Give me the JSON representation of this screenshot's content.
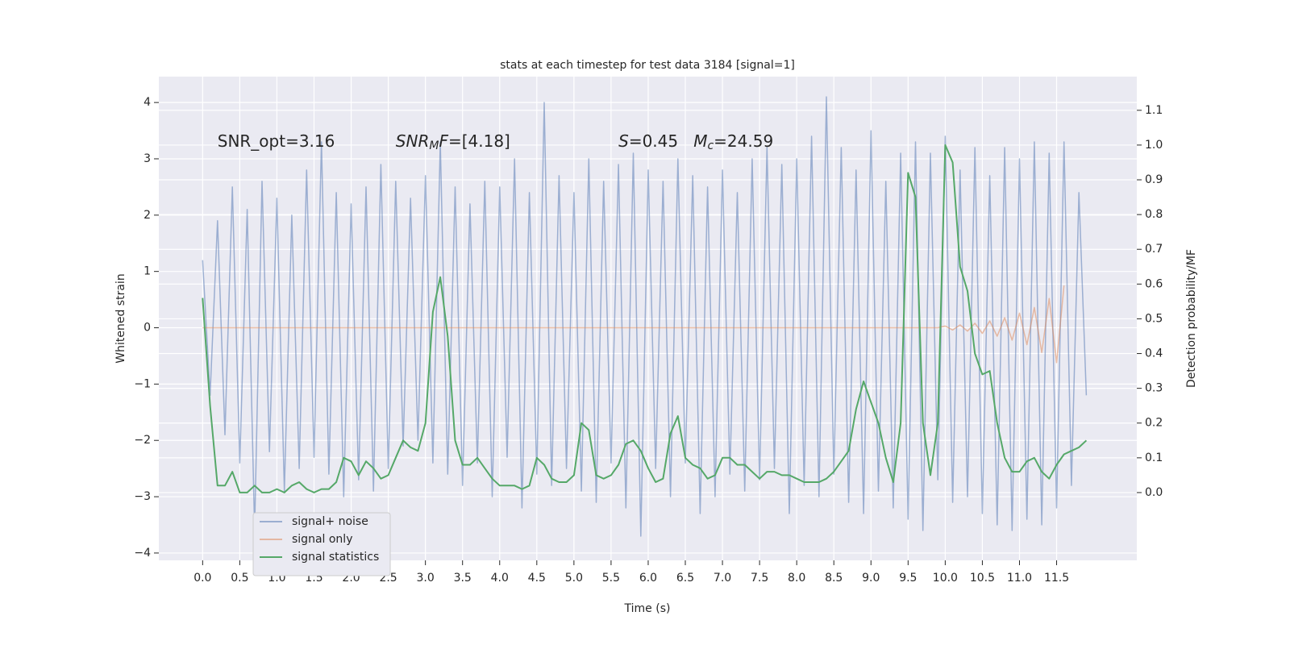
{
  "chart_data": {
    "type": "line",
    "title": "stats at each timestep for test data 3184 [signal=1]",
    "xlabel": "Time (s)",
    "ylabel": "Whitened strain",
    "y2label": "Detection probability/MF",
    "annotations": [
      {
        "x": 0.2,
        "y": 3.3,
        "parts": [
          {
            "text": "SNR_opt=3.16",
            "italic": false,
            "sub": false
          }
        ]
      },
      {
        "x": 2.6,
        "y": 3.3,
        "parts": [
          {
            "text": "SNR",
            "italic": true,
            "sub": false
          },
          {
            "text": "M",
            "italic": true,
            "sub": true
          },
          {
            "text": "F",
            "italic": true,
            "sub": false
          },
          {
            "text": "=[4.18]",
            "italic": false,
            "sub": false
          }
        ]
      },
      {
        "x": 5.6,
        "y": 3.3,
        "parts": [
          {
            "text": "S",
            "italic": true,
            "sub": false
          },
          {
            "text": "=0.45   ",
            "italic": false,
            "sub": false
          },
          {
            "text": "M",
            "italic": true,
            "sub": false
          },
          {
            "text": "c",
            "italic": true,
            "sub": true
          },
          {
            "text": "=24.59",
            "italic": false,
            "sub": false
          }
        ]
      }
    ],
    "x": [
      0.0,
      0.1,
      0.2,
      0.3,
      0.4,
      0.5,
      0.6,
      0.7,
      0.8,
      0.9,
      1.0,
      1.1,
      1.2,
      1.3,
      1.4,
      1.5,
      1.6,
      1.7,
      1.8,
      1.9,
      2.0,
      2.1,
      2.2,
      2.3,
      2.4,
      2.5,
      2.6,
      2.7,
      2.8,
      2.9,
      3.0,
      3.1,
      3.2,
      3.3,
      3.4,
      3.5,
      3.6,
      3.7,
      3.8,
      3.9,
      4.0,
      4.1,
      4.2,
      4.3,
      4.4,
      4.5,
      4.6,
      4.7,
      4.8,
      4.9,
      5.0,
      5.1,
      5.2,
      5.3,
      5.4,
      5.5,
      5.6,
      5.7,
      5.8,
      5.9,
      6.0,
      6.1,
      6.2,
      6.3,
      6.4,
      6.5,
      6.6,
      6.7,
      6.8,
      6.9,
      7.0,
      7.1,
      7.2,
      7.3,
      7.4,
      7.5,
      7.6,
      7.7,
      7.8,
      7.9,
      8.0,
      8.1,
      8.2,
      8.3,
      8.4,
      8.5,
      8.6,
      8.7,
      8.8,
      8.9,
      9.0,
      9.1,
      9.2,
      9.3,
      9.4,
      9.5,
      9.6,
      9.7,
      9.8,
      9.9,
      10.0,
      10.1,
      10.2,
      10.3,
      10.4,
      10.5,
      10.6,
      10.7,
      10.8,
      10.9,
      11.0,
      11.1,
      11.2,
      11.3,
      11.4,
      11.5,
      11.6,
      11.7,
      11.8,
      11.9
    ],
    "series": [
      {
        "name": "signal+ noise",
        "color": "#4c72b0",
        "opacity": 0.5,
        "axis": "y",
        "values": [
          1.2,
          -1.2,
          1.9,
          -1.9,
          2.5,
          -2.4,
          2.1,
          -3.6,
          2.6,
          -2.2,
          2.3,
          -2.9,
          2.0,
          -2.5,
          2.8,
          -2.3,
          3.3,
          -2.6,
          2.4,
          -3.0,
          2.2,
          -2.7,
          2.5,
          -2.9,
          2.9,
          -2.5,
          2.6,
          -2.1,
          2.3,
          -2.0,
          2.7,
          -2.4,
          3.3,
          -2.6,
          2.5,
          -2.8,
          2.2,
          -2.4,
          2.6,
          -3.0,
          2.5,
          -2.3,
          3.0,
          -3.2,
          2.4,
          -2.6,
          4.0,
          -2.8,
          2.7,
          -2.5,
          2.4,
          -2.9,
          3.0,
          -3.1,
          2.6,
          -2.4,
          2.9,
          -3.2,
          3.1,
          -3.7,
          2.8,
          -2.5,
          2.6,
          -3.0,
          3.0,
          -2.4,
          2.7,
          -3.3,
          2.5,
          -3.0,
          2.8,
          -2.6,
          2.4,
          -2.9,
          3.0,
          -2.7,
          3.2,
          -2.5,
          2.9,
          -3.3,
          3.0,
          -2.8,
          3.4,
          -3.0,
          4.1,
          -2.6,
          3.2,
          -3.1,
          2.8,
          -3.3,
          3.5,
          -2.9,
          2.6,
          -3.2,
          3.1,
          -3.4,
          3.3,
          -3.6,
          3.1,
          -2.7,
          3.4,
          -3.1,
          2.8,
          -3.0,
          3.2,
          -3.3,
          2.7,
          -3.5,
          3.2,
          -3.6,
          3.0,
          -3.4,
          3.3,
          -3.5,
          3.1,
          -3.2,
          3.3,
          -2.8,
          2.4,
          -1.2
        ]
      },
      {
        "name": "signal only",
        "color": "#dd8452",
        "opacity": 0.5,
        "axis": "y",
        "values": [
          0,
          0,
          0,
          0,
          0,
          0,
          0,
          0,
          0,
          0,
          0,
          0,
          0,
          0,
          0,
          0,
          0,
          0,
          0,
          0,
          0,
          0,
          0,
          0,
          0,
          0,
          0,
          0,
          0,
          0,
          0,
          0,
          0,
          0,
          0,
          0,
          0,
          0,
          0,
          0,
          0,
          0,
          0,
          0,
          0,
          0,
          0,
          0,
          0,
          0,
          0,
          0,
          0,
          0,
          0,
          0,
          0,
          0,
          0,
          0,
          0,
          0,
          0,
          0,
          0,
          0,
          0,
          0,
          0,
          0,
          0,
          0,
          0,
          0,
          0,
          0,
          0,
          0,
          0,
          0,
          0,
          0,
          0,
          0,
          0,
          0,
          0,
          0,
          0,
          0,
          0,
          0,
          0,
          0,
          0,
          0,
          0,
          0,
          0,
          0,
          0.03,
          -0.04,
          0.05,
          -0.06,
          0.08,
          -0.1,
          0.12,
          -0.15,
          0.18,
          -0.22,
          0.26,
          -0.3,
          0.36,
          -0.44,
          0.52,
          -0.62,
          0.75,
          null,
          null,
          null
        ]
      },
      {
        "name": "signal statistics",
        "color": "#55a868",
        "opacity": 1,
        "axis": "y2",
        "values": [
          0.56,
          0.25,
          0.02,
          0.02,
          0.06,
          0,
          0,
          0.02,
          0,
          0,
          0.01,
          0,
          0.02,
          0.03,
          0.01,
          0,
          0.01,
          0.01,
          0.03,
          0.1,
          0.09,
          0.05,
          0.09,
          0.07,
          0.04,
          0.05,
          0.1,
          0.15,
          0.13,
          0.12,
          0.2,
          0.52,
          0.62,
          0.45,
          0.15,
          0.08,
          0.08,
          0.1,
          0.07,
          0.04,
          0.02,
          0.02,
          0.02,
          0.01,
          0.02,
          0.1,
          0.08,
          0.04,
          0.03,
          0.03,
          0.05,
          0.2,
          0.18,
          0.05,
          0.04,
          0.05,
          0.08,
          0.14,
          0.15,
          0.12,
          0.07,
          0.03,
          0.04,
          0.17,
          0.22,
          0.1,
          0.08,
          0.07,
          0.04,
          0.05,
          0.1,
          0.1,
          0.08,
          0.08,
          0.06,
          0.04,
          0.06,
          0.06,
          0.05,
          0.05,
          0.04,
          0.03,
          0.03,
          0.03,
          0.04,
          0.06,
          0.09,
          0.12,
          0.24,
          0.32,
          0.26,
          0.2,
          0.1,
          0.03,
          0.2,
          0.92,
          0.85,
          0.2,
          0.05,
          0.2,
          1.0,
          0.95,
          0.65,
          0.58,
          0.4,
          0.34,
          0.35,
          0.2,
          0.1,
          0.06,
          0.06,
          0.09,
          0.1,
          0.06,
          0.04,
          0.08,
          0.11,
          0.12,
          0.13,
          0.15
        ]
      }
    ],
    "xlim": [
      -0.59,
      12.58
    ],
    "xticks": [
      {
        "value": 0,
        "label": "0.0"
      },
      0.5,
      {
        "value": 1,
        "label": "1.0"
      },
      1.5,
      {
        "value": 2,
        "label": "2.0"
      },
      2.5,
      {
        "value": 3,
        "label": "3.0"
      },
      3.5,
      {
        "value": 4,
        "label": "4.0"
      },
      4.5,
      {
        "value": 5,
        "label": "5.0"
      },
      5.5,
      {
        "value": 6,
        "label": "6.0"
      },
      6.5,
      {
        "value": 7,
        "label": "7.0"
      },
      7.5,
      {
        "value": 8,
        "label": "8.0"
      },
      8.5,
      {
        "value": 9,
        "label": "9.0"
      },
      9.5,
      {
        "value": 10,
        "label": "10.0"
      },
      10.5,
      {
        "value": 11,
        "label": "11.0"
      },
      11.5
    ],
    "ylim": [
      -4.13,
      4.46
    ],
    "yticks": [
      {
        "value": -4,
        "label": "−4"
      },
      {
        "value": -3,
        "label": "−3"
      },
      {
        "value": -2,
        "label": "−2"
      },
      {
        "value": -1,
        "label": "−1"
      },
      0,
      1,
      2,
      3,
      4
    ],
    "y2lim": [
      -0.195,
      1.197
    ],
    "y2ticks": [
      {
        "value": 0,
        "label": "0.0"
      },
      0.1,
      0.2,
      0.3,
      0.4,
      0.5,
      0.6,
      0.7,
      0.8,
      0.9,
      {
        "value": 1,
        "label": "1.0"
      },
      1.1
    ],
    "grid": true,
    "legend": "lower left"
  }
}
